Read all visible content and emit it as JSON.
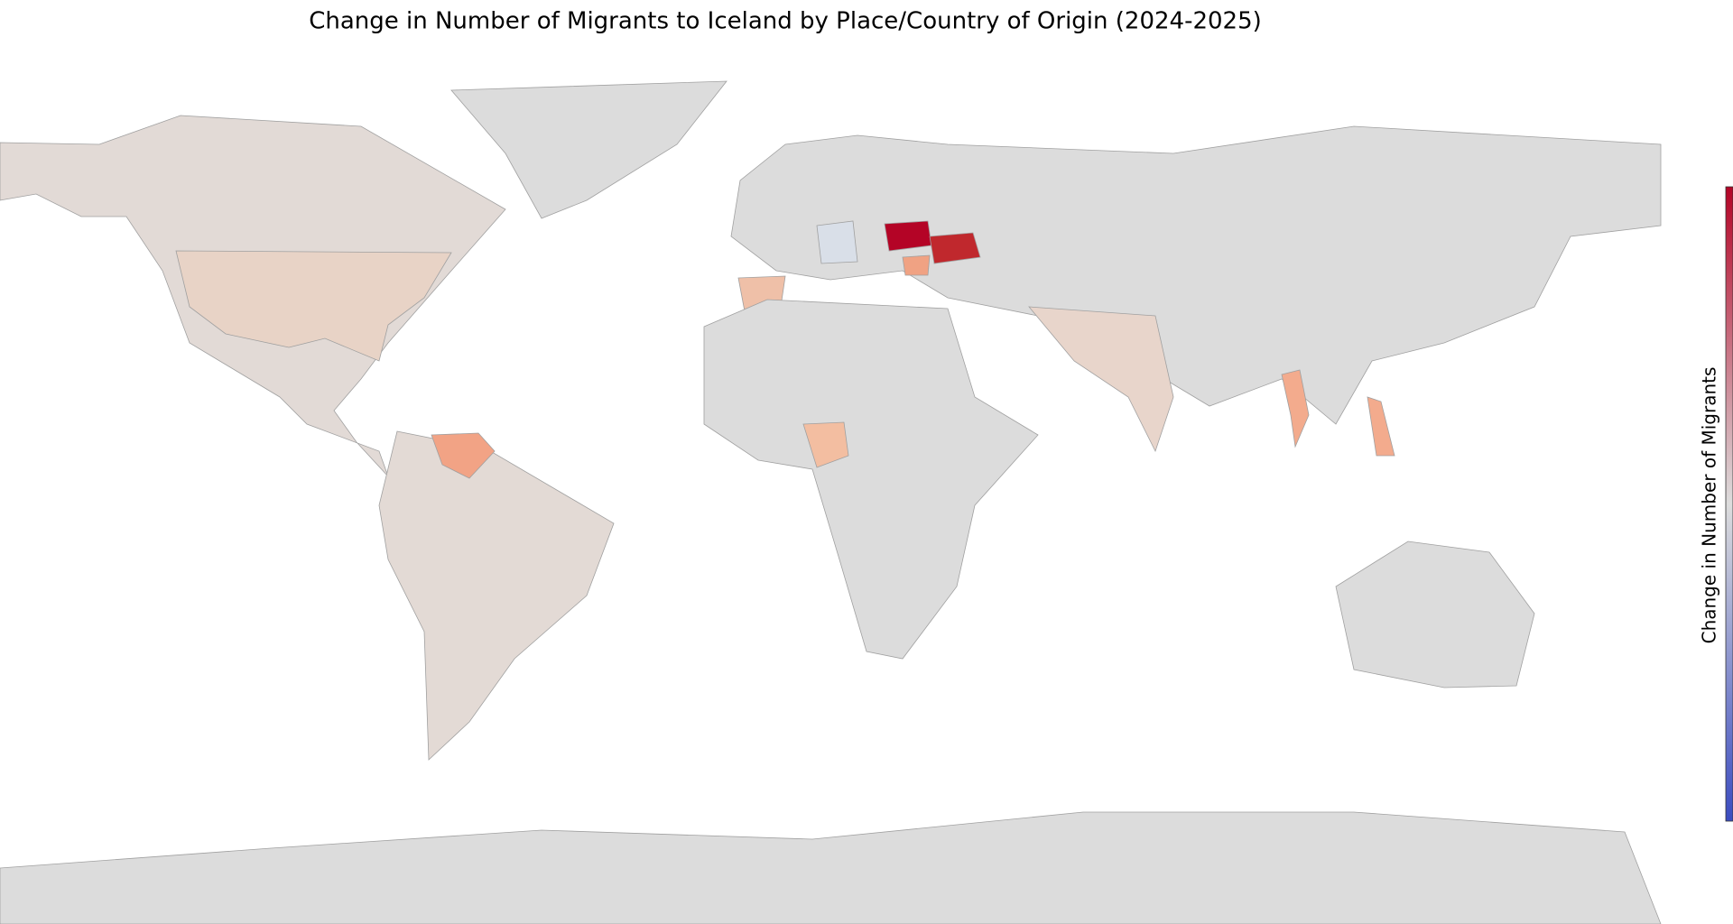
{
  "title": "Change in Number of Migrants to Iceland by Place/Country of Origin (2024-2025)",
  "colorbar": {
    "label": "Change in Number of Migrants",
    "colormap": [
      "#3b4cc0",
      "#dddddd",
      "#b40426"
    ]
  }
}
